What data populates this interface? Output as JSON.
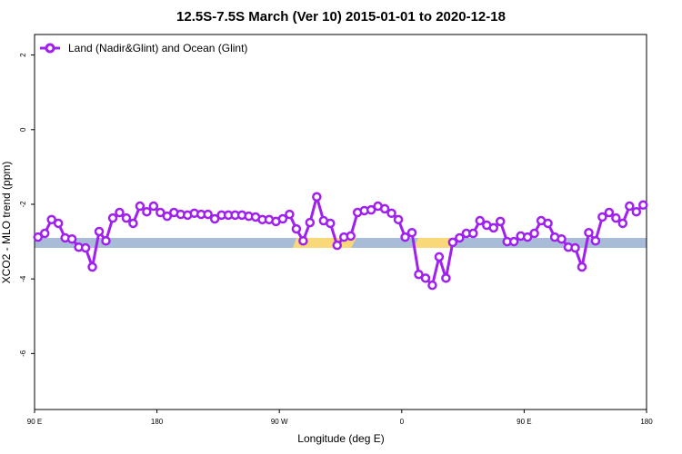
{
  "chart_data": {
    "type": "line",
    "title": "12.5S-7.5S March (Ver 10)   2015-01-01 to 2020-12-18",
    "x_label": "Longitude (deg E)",
    "y_label": "XCO2 - MLO trend (ppm)",
    "xlim": [
      90,
      540
    ],
    "ylim": [
      -7.5,
      2.55
    ],
    "xticks": [
      {
        "value": 90,
        "label": "90 E"
      },
      180,
      {
        "value": 270,
        "label": "90 W"
      },
      {
        "value": 360,
        "label": "0"
      },
      {
        "value": 450,
        "label": "90 E"
      },
      {
        "value": 540,
        "label": "180"
      }
    ],
    "yticks": [
      -6,
      -4,
      -2,
      0,
      2
    ],
    "legend": "top-left",
    "x": [
      92.5,
      97.5,
      102.5,
      107.5,
      112.5,
      117.5,
      122.5,
      127.5,
      132.5,
      137.5,
      142.5,
      147.5,
      152.5,
      157.5,
      162.5,
      167.5,
      172.5,
      177.5,
      182.5,
      187.5,
      192.5,
      197.5,
      202.5,
      207.5,
      212.5,
      217.5,
      222.5,
      227.5,
      232.5,
      237.5,
      242.5,
      247.5,
      252.5,
      257.5,
      262.5,
      267.5,
      272.5,
      277.5,
      282.5,
      287.5,
      292.5,
      297.5,
      302.5,
      307.5,
      312.5,
      317.5,
      322.5,
      327.5,
      332.5,
      337.5,
      342.5,
      347.5,
      352.5,
      357.5,
      362.5,
      367.5,
      372.5,
      377.5,
      382.5,
      387.5,
      392.5,
      397.5,
      402.5,
      407.5,
      412.5,
      417.5,
      422.5,
      427.5,
      432.5,
      437.5,
      442.5,
      447.5,
      452.5,
      457.5,
      462.5,
      467.5,
      472.5,
      477.5,
      482.5,
      487.5,
      492.5,
      497.5,
      502.5,
      507.5,
      512.5,
      517.5,
      522.5,
      527.5,
      532.5,
      537.5
    ],
    "series": [
      {
        "name": "Land (Nadir&Glint) and Ocean (Glint)",
        "color": "#a020f0",
        "values": [
          -2.88,
          -2.78,
          -2.41,
          -2.51,
          -2.9,
          -2.93,
          -3.15,
          -3.17,
          -3.68,
          -2.73,
          -2.98,
          -2.37,
          -2.22,
          -2.37,
          -2.51,
          -2.05,
          -2.2,
          -2.05,
          -2.22,
          -2.32,
          -2.22,
          -2.27,
          -2.29,
          -2.24,
          -2.27,
          -2.27,
          -2.39,
          -2.29,
          -2.29,
          -2.29,
          -2.29,
          -2.32,
          -2.34,
          -2.41,
          -2.41,
          -2.46,
          -2.39,
          -2.27,
          -2.66,
          -2.98,
          -2.49,
          -1.8,
          -2.44,
          -2.51,
          -3.1,
          -2.88,
          -2.85,
          -2.22,
          -2.17,
          -2.15,
          -2.05,
          -2.12,
          -2.24,
          -2.41,
          -2.88,
          -2.76,
          -3.88,
          -3.98,
          -4.17,
          -3.41,
          -3.98,
          -3.02,
          -2.9,
          -2.78,
          -2.78,
          -2.44,
          -2.56,
          -2.63,
          -2.46,
          -3.0,
          -3.0,
          -2.85,
          -2.88,
          -2.78,
          -2.44,
          -2.51,
          -2.88,
          -2.93,
          -3.15,
          -3.17,
          -3.68,
          -2.76,
          -2.98,
          -2.34,
          -2.22,
          -2.37,
          -2.51,
          -2.05,
          -2.2,
          -2.02
        ]
      }
    ]
  }
}
